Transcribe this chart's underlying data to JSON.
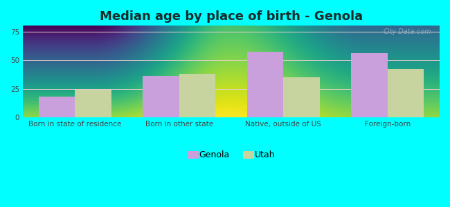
{
  "title": "Median age by place of birth - Genola",
  "categories": [
    "Born in state of residence",
    "Born in other state",
    "Native, outside of US",
    "Foreign-born"
  ],
  "genola_values": [
    18,
    36,
    57,
    56
  ],
  "utah_values": [
    24,
    38,
    35,
    42
  ],
  "genola_color": "#c9a0dc",
  "utah_color": "#c8d4a0",
  "background_color": "#00ffff",
  "plot_bg_top_left": "#c8ead8",
  "plot_bg_bottom_right": "#f0f8f0",
  "ylim": [
    0,
    80
  ],
  "yticks": [
    0,
    25,
    50,
    75
  ],
  "bar_width": 0.35,
  "title_fontsize": 13,
  "tick_fontsize": 7.5,
  "legend_labels": [
    "Genola",
    "Utah"
  ],
  "watermark": "City-Data.com",
  "title_color": "#1a2a2a",
  "tick_color": "#444444"
}
